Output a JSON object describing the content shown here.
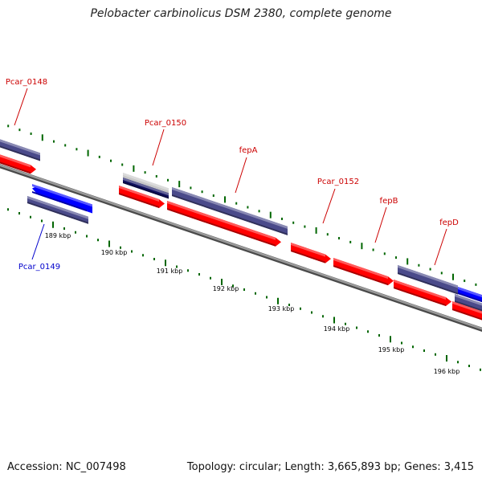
{
  "title": "Pelobacter carbinolicus DSM 2380, complete genome",
  "footer": {
    "accession": "Accession: NC_007498",
    "summary": "Topology: circular; Length: 3,665,893 bp; Genes: 3,415"
  },
  "colors": {
    "forward_gene": "#ff0000",
    "reverse_gene": "#0000ff",
    "feature_slate": "#4a4a8a",
    "backbone": "#808080",
    "tick": "#006600",
    "label_forward": "#cc0000",
    "label_reverse": "#0000cc"
  },
  "tick_labels": [
    "189 kbp",
    "190 kbp",
    "191 kbp",
    "192 kbp",
    "193 kbp",
    "194 kbp",
    "195 kbp",
    "196 kbp"
  ],
  "gene_labels": [
    {
      "text": "Pcar_0148",
      "strand": "forward"
    },
    {
      "text": "Pcar_0149",
      "strand": "reverse"
    },
    {
      "text": "Pcar_0150",
      "strand": "forward"
    },
    {
      "text": "fepA",
      "strand": "forward"
    },
    {
      "text": "Pcar_0152",
      "strand": "forward"
    },
    {
      "text": "fepB",
      "strand": "forward"
    },
    {
      "text": "fepD",
      "strand": "forward"
    }
  ]
}
